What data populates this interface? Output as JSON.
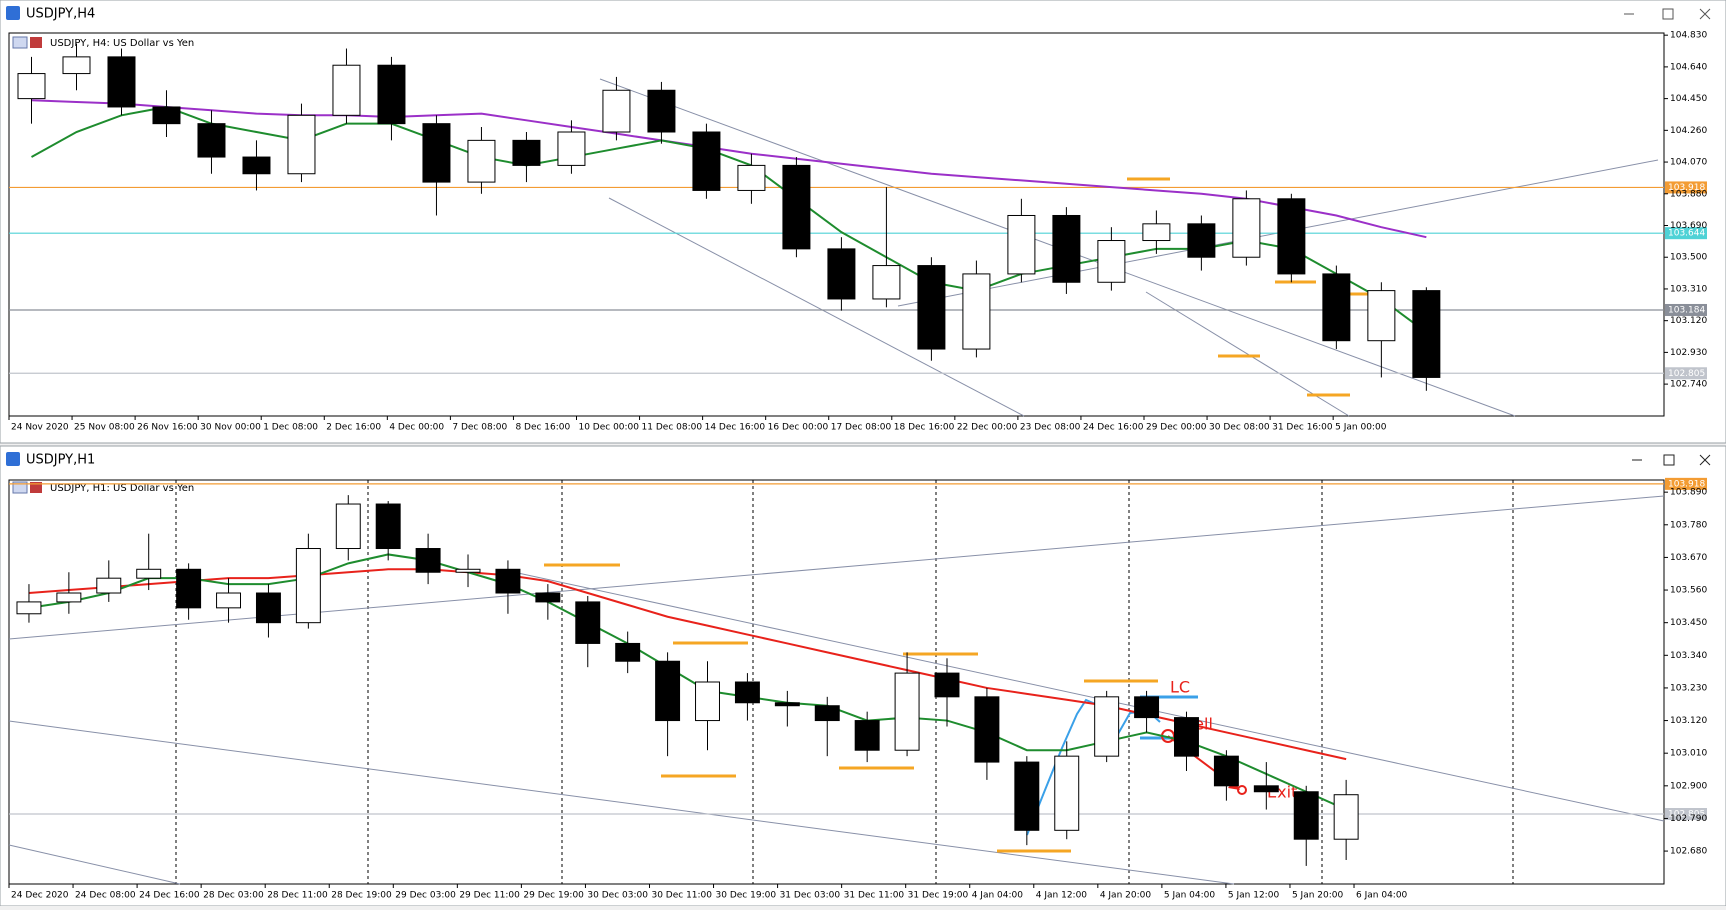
{
  "windows": [
    "USDJPY,H4",
    "USDJPY,H1"
  ],
  "chart_data": [
    {
      "type": "candlestick",
      "title": "USDJPY, H4:  US Dollar vs Yen",
      "time_labels": [
        "24 Nov 2020",
        "25 Nov 08:00",
        "26 Nov 16:00",
        "30 Nov 00:00",
        "1 Dec 08:00",
        "2 Dec 16:00",
        "4 Dec 00:00",
        "7 Dec 08:00",
        "8 Dec 16:00",
        "10 Dec 00:00",
        "11 Dec 08:00",
        "14 Dec 16:00",
        "16 Dec 00:00",
        "17 Dec 08:00",
        "18 Dec 16:00",
        "22 Dec 00:00",
        "23 Dec 08:00",
        "24 Dec 16:00",
        "29 Dec 00:00",
        "30 Dec 08:00",
        "31 Dec 16:00",
        "5 Jan 00:00"
      ],
      "ohlc": [
        [
          104.45,
          104.7,
          104.3,
          104.6
        ],
        [
          104.6,
          104.78,
          104.5,
          104.7
        ],
        [
          104.7,
          104.75,
          104.35,
          104.4
        ],
        [
          104.4,
          104.5,
          104.22,
          104.3
        ],
        [
          104.3,
          104.38,
          104.0,
          104.1
        ],
        [
          104.1,
          104.2,
          103.9,
          104.0
        ],
        [
          104.0,
          104.42,
          103.95,
          104.35
        ],
        [
          104.35,
          104.75,
          104.3,
          104.65
        ],
        [
          104.65,
          104.7,
          104.2,
          104.3
        ],
        [
          104.3,
          104.35,
          103.75,
          103.95
        ],
        [
          103.95,
          104.28,
          103.88,
          104.2
        ],
        [
          104.2,
          104.25,
          103.95,
          104.05
        ],
        [
          104.05,
          104.32,
          104.0,
          104.25
        ],
        [
          104.25,
          104.58,
          104.2,
          104.5
        ],
        [
          104.5,
          104.55,
          104.18,
          104.25
        ],
        [
          104.25,
          104.3,
          103.85,
          103.9
        ],
        [
          103.9,
          104.12,
          103.82,
          104.05
        ],
        [
          104.05,
          104.1,
          103.5,
          103.55
        ],
        [
          103.55,
          103.62,
          103.18,
          103.25
        ],
        [
          103.25,
          103.92,
          103.2,
          103.45
        ],
        [
          103.45,
          103.5,
          102.88,
          102.95
        ],
        [
          102.95,
          103.48,
          102.9,
          103.4
        ],
        [
          103.4,
          103.85,
          103.35,
          103.75
        ],
        [
          103.75,
          103.8,
          103.28,
          103.35
        ],
        [
          103.35,
          103.68,
          103.3,
          103.6
        ],
        [
          103.6,
          103.78,
          103.52,
          103.7
        ],
        [
          103.7,
          103.75,
          103.42,
          103.5
        ],
        [
          103.5,
          103.9,
          103.45,
          103.85
        ],
        [
          103.85,
          103.88,
          103.35,
          103.4
        ],
        [
          103.4,
          103.45,
          102.95,
          103.0
        ],
        [
          103.0,
          103.35,
          102.78,
          103.3
        ],
        [
          103.3,
          103.32,
          102.7,
          102.78
        ]
      ],
      "series": [
        {
          "color": "#9b30c8",
          "values": [
            104.44,
            104.43,
            104.42,
            104.4,
            104.38,
            104.36,
            104.35,
            104.35,
            104.34,
            104.35,
            104.36,
            104.32,
            104.28,
            104.24,
            104.2,
            104.16,
            104.12,
            104.09,
            104.06,
            104.03,
            104.0,
            103.98,
            103.96,
            103.94,
            103.92,
            103.9,
            103.88,
            103.85,
            103.8,
            103.75,
            103.68,
            103.62
          ]
        },
        {
          "color": "#1e8c2e",
          "values": [
            104.1,
            104.25,
            104.35,
            104.4,
            104.3,
            104.25,
            104.2,
            104.3,
            104.3,
            104.2,
            104.1,
            104.05,
            104.1,
            104.15,
            104.2,
            104.15,
            104.05,
            103.85,
            103.65,
            103.5,
            103.35,
            103.3,
            103.4,
            103.45,
            103.5,
            103.55,
            103.55,
            103.6,
            103.55,
            103.4,
            103.25,
            103.05
          ]
        }
      ],
      "levels": [
        {
          "value": 103.918,
          "label": "103.918",
          "color": "#f39c33"
        },
        {
          "value": 103.644,
          "label": "103.644",
          "color": "#4fd2d6"
        },
        {
          "value": 103.184,
          "label": "103.184",
          "color": "#8a8f99"
        },
        {
          "value": 102.805,
          "label": "102.805",
          "color": "#c0c4cc"
        }
      ],
      "ylim": [
        102.549,
        104.843
      ],
      "yticks": [
        {
          "value": 104.83,
          "label": "104.830"
        },
        {
          "value": 104.64,
          "label": "104.640"
        },
        {
          "value": 104.45,
          "label": "104.450"
        },
        {
          "value": 104.26,
          "label": "104.260"
        },
        {
          "value": 104.07,
          "label": "104.070"
        },
        {
          "value": 103.88,
          "label": "103.880"
        },
        {
          "value": 103.69,
          "label": "103.690"
        },
        {
          "value": 103.5,
          "label": "103.500"
        },
        {
          "value": 103.31,
          "label": "103.310"
        },
        {
          "value": 103.12,
          "label": "103.120"
        },
        {
          "value": 102.93,
          "label": "102.930"
        },
        {
          "value": 102.74,
          "label": "102.740"
        }
      ],
      "grid": false
    },
    {
      "type": "candlestick",
      "title": "USDJPY, H1:  US Dollar vs Yen",
      "time_labels": [
        "24 Dec 2020",
        "24 Dec 08:00",
        "24 Dec 16:00",
        "28 Dec 03:00",
        "28 Dec 11:00",
        "28 Dec 19:00",
        "29 Dec 03:00",
        "29 Dec 11:00",
        "29 Dec 19:00",
        "30 Dec 03:00",
        "30 Dec 11:00",
        "30 Dec 19:00",
        "31 Dec 03:00",
        "31 Dec 11:00",
        "31 Dec 19:00",
        "4 Jan 04:00",
        "4 Jan 12:00",
        "4 Jan 20:00",
        "5 Jan 04:00",
        "5 Jan 12:00",
        "5 Jan 20:00",
        "6 Jan 04:00"
      ],
      "ohlc": [
        [
          103.48,
          103.58,
          103.45,
          103.52
        ],
        [
          103.52,
          103.62,
          103.48,
          103.55
        ],
        [
          103.55,
          103.66,
          103.52,
          103.6
        ],
        [
          103.6,
          103.75,
          103.56,
          103.63
        ],
        [
          103.63,
          103.65,
          103.46,
          103.5
        ],
        [
          103.5,
          103.6,
          103.45,
          103.55
        ],
        [
          103.55,
          103.58,
          103.4,
          103.45
        ],
        [
          103.45,
          103.75,
          103.43,
          103.7
        ],
        [
          103.7,
          103.88,
          103.66,
          103.85
        ],
        [
          103.85,
          103.86,
          103.66,
          103.7
        ],
        [
          103.7,
          103.75,
          103.58,
          103.62
        ],
        [
          103.62,
          103.68,
          103.57,
          103.63
        ],
        [
          103.63,
          103.66,
          103.48,
          103.55
        ],
        [
          103.55,
          103.58,
          103.46,
          103.52
        ],
        [
          103.52,
          103.54,
          103.3,
          103.38
        ],
        [
          103.38,
          103.42,
          103.28,
          103.32
        ],
        [
          103.32,
          103.35,
          103.0,
          103.12
        ],
        [
          103.12,
          103.32,
          103.02,
          103.25
        ],
        [
          103.25,
          103.28,
          103.12,
          103.18
        ],
        [
          103.18,
          103.22,
          103.1,
          103.17
        ],
        [
          103.17,
          103.2,
          103.0,
          103.12
        ],
        [
          103.12,
          103.15,
          102.98,
          103.02
        ],
        [
          103.02,
          103.35,
          103.0,
          103.28
        ],
        [
          103.28,
          103.33,
          103.1,
          103.2
        ],
        [
          103.2,
          103.23,
          102.92,
          102.98
        ],
        [
          102.98,
          103.0,
          102.7,
          102.75
        ],
        [
          102.75,
          103.05,
          102.72,
          103.0
        ],
        [
          103.0,
          103.22,
          102.98,
          103.2
        ],
        [
          103.2,
          103.22,
          103.08,
          103.13
        ],
        [
          103.13,
          103.15,
          102.95,
          103.0
        ],
        [
          103.0,
          103.02,
          102.85,
          102.9
        ],
        [
          102.9,
          102.98,
          102.82,
          102.88
        ],
        [
          102.88,
          102.9,
          102.63,
          102.72
        ],
        [
          102.72,
          102.92,
          102.65,
          102.87
        ]
      ],
      "series": [
        {
          "color": "#e8221b",
          "values": [
            103.55,
            103.56,
            103.57,
            103.58,
            103.59,
            103.6,
            103.6,
            103.61,
            103.62,
            103.63,
            103.63,
            103.62,
            103.61,
            103.59,
            103.55,
            103.51,
            103.47,
            103.44,
            103.41,
            103.38,
            103.35,
            103.32,
            103.29,
            103.26,
            103.23,
            103.21,
            103.19,
            103.17,
            103.14,
            103.11,
            103.08,
            103.05,
            103.02,
            102.99
          ]
        },
        {
          "color": "#1e8c2e",
          "values": [
            103.5,
            103.52,
            103.55,
            103.6,
            103.6,
            103.58,
            103.58,
            103.6,
            103.65,
            103.68,
            103.66,
            103.62,
            103.58,
            103.52,
            103.45,
            103.38,
            103.3,
            103.22,
            103.2,
            103.18,
            103.17,
            103.12,
            103.13,
            103.12,
            103.08,
            103.02,
            103.02,
            103.05,
            103.08,
            103.05,
            103.0,
            102.94,
            102.88,
            102.82
          ]
        }
      ],
      "levels": [
        {
          "value": 103.918,
          "label": "103.918",
          "color": "#f39c33"
        },
        {
          "value": 102.805,
          "label": "102.805",
          "color": "#c0c4cc"
        }
      ],
      "annotations": [
        "LC",
        "Sell",
        "Exit"
      ],
      "ylim": [
        102.569,
        103.931
      ],
      "yticks": [
        {
          "value": 103.89,
          "label": "103.890"
        },
        {
          "value": 103.78,
          "label": "103.780"
        },
        {
          "value": 103.67,
          "label": "103.670"
        },
        {
          "value": 103.56,
          "label": "103.560"
        },
        {
          "value": 103.45,
          "label": "103.450"
        },
        {
          "value": 103.34,
          "label": "103.340"
        },
        {
          "value": 103.23,
          "label": "103.230"
        },
        {
          "value": 103.12,
          "label": "103.120"
        },
        {
          "value": 103.01,
          "label": "103.010"
        },
        {
          "value": 102.9,
          "label": "102.900"
        },
        {
          "value": 102.79,
          "label": "102.790"
        },
        {
          "value": 102.68,
          "label": "102.680"
        }
      ],
      "grid": false
    }
  ]
}
